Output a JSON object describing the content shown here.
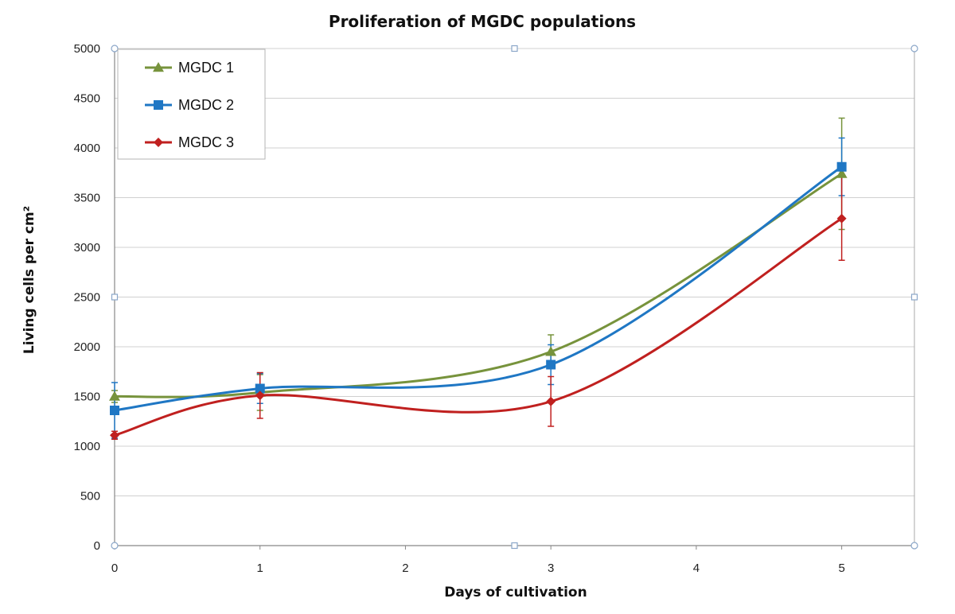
{
  "chart_data": {
    "type": "line",
    "title": "Proliferation of MGDC populations",
    "xlabel": "Days of cultivation",
    "ylabel": "Living cells per cm²",
    "x": [
      0,
      1,
      3,
      5
    ],
    "xlim": [
      0,
      5.5
    ],
    "ylim": [
      0,
      5000
    ],
    "xticks": [
      "0",
      "1",
      "2",
      "3",
      "4",
      "5"
    ],
    "yticks": [
      "0",
      "500",
      "1000",
      "1500",
      "2000",
      "2500",
      "3000",
      "3500",
      "4000",
      "4500",
      "5000"
    ],
    "grid": true,
    "legend_position": "top-left",
    "series": [
      {
        "name": "MGDC 1",
        "color": "#77933C",
        "marker": "triangle",
        "values": [
          1500,
          1540,
          1950,
          3740
        ],
        "error": [
          60,
          180,
          170,
          560
        ]
      },
      {
        "name": "MGDC 2",
        "color": "#1F77C4",
        "marker": "square",
        "values": [
          1360,
          1580,
          1820,
          3810
        ],
        "error": [
          280,
          150,
          200,
          290
        ]
      },
      {
        "name": "MGDC 3",
        "color": "#C0201F",
        "marker": "diamond",
        "values": [
          1110,
          1510,
          1450,
          3290
        ],
        "error": [
          40,
          230,
          250,
          420
        ]
      }
    ]
  }
}
